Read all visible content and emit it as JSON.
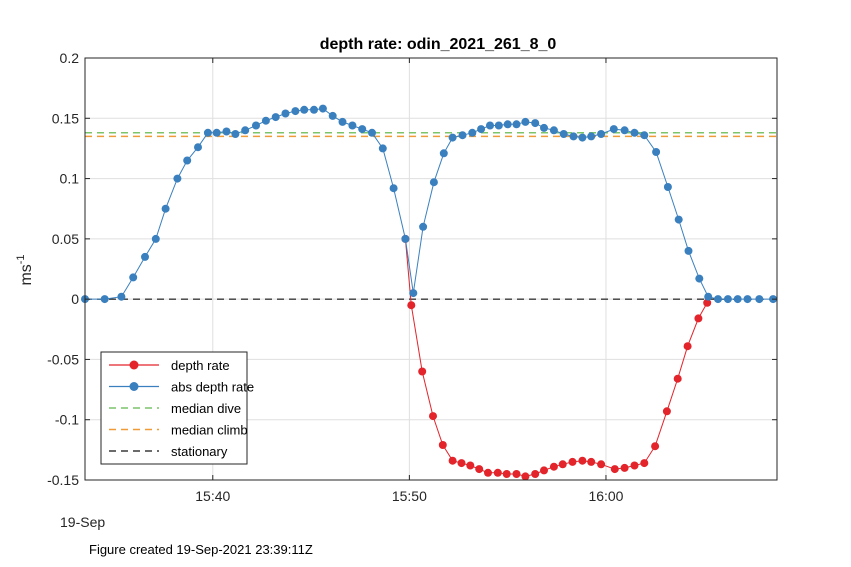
{
  "chart_data": {
    "type": "line",
    "title": "depth rate: odin_2021_261_8_0",
    "ylabel": "ms",
    "ylabel_sup": "-1",
    "date_label": "19-Sep",
    "footer": "Figure created 19-Sep-2021 23:39:11Z",
    "xlim": [
      33.5,
      68.7
    ],
    "ylim": [
      -0.15,
      0.2
    ],
    "x_ticks": [
      {
        "value": 40,
        "label": "15:40"
      },
      {
        "value": 50,
        "label": "15:50"
      },
      {
        "value": 60,
        "label": "16:00"
      }
    ],
    "y_ticks": [
      {
        "value": 0.2,
        "label": "0.2"
      },
      {
        "value": 0.15,
        "label": "0.15"
      },
      {
        "value": 0.1,
        "label": "0.1"
      },
      {
        "value": 0.05,
        "label": "0.05"
      },
      {
        "value": 0,
        "label": "0"
      },
      {
        "value": -0.05,
        "label": "-0.05"
      },
      {
        "value": -0.1,
        "label": "-0.1"
      },
      {
        "value": -0.15,
        "label": "-0.15"
      }
    ],
    "grid": true,
    "legend_position": "bottom-left",
    "series": [
      {
        "name": "depth rate",
        "color": "#e3242b",
        "marker": "circle",
        "points": [
          [
            49.8,
            0.05
          ],
          [
            50.1,
            -0.005
          ],
          [
            50.65,
            -0.06
          ],
          [
            51.2,
            -0.097
          ],
          [
            51.7,
            -0.121
          ],
          [
            52.2,
            -0.134
          ],
          [
            52.65,
            -0.136
          ],
          [
            53.1,
            -0.138
          ],
          [
            53.55,
            -0.141
          ],
          [
            54.0,
            -0.144
          ],
          [
            54.5,
            -0.144
          ],
          [
            54.95,
            -0.145
          ],
          [
            55.45,
            -0.145
          ],
          [
            55.9,
            -0.147
          ],
          [
            56.4,
            -0.145
          ],
          [
            56.85,
            -0.142
          ],
          [
            57.35,
            -0.139
          ],
          [
            57.8,
            -0.137
          ],
          [
            58.3,
            -0.135
          ],
          [
            58.8,
            -0.134
          ],
          [
            59.25,
            -0.135
          ],
          [
            59.75,
            -0.137
          ],
          [
            60.45,
            -0.141
          ],
          [
            60.95,
            -0.14
          ],
          [
            61.45,
            -0.138
          ],
          [
            61.95,
            -0.136
          ],
          [
            62.5,
            -0.122
          ],
          [
            63.1,
            -0.093
          ],
          [
            63.65,
            -0.066
          ],
          [
            64.15,
            -0.039
          ],
          [
            64.7,
            -0.016
          ],
          [
            65.15,
            -0.003
          ]
        ]
      },
      {
        "name": "abs depth rate",
        "color": "#3a80bf",
        "marker": "circle",
        "points": [
          [
            33.5,
            0.0
          ],
          [
            34.5,
            0.0
          ],
          [
            35.35,
            0.002
          ],
          [
            35.95,
            0.018
          ],
          [
            36.55,
            0.035
          ],
          [
            37.1,
            0.05
          ],
          [
            37.6,
            0.075
          ],
          [
            38.2,
            0.1
          ],
          [
            38.7,
            0.115
          ],
          [
            39.25,
            0.126
          ],
          [
            39.75,
            0.138
          ],
          [
            40.2,
            0.138
          ],
          [
            40.7,
            0.139
          ],
          [
            41.15,
            0.137
          ],
          [
            41.65,
            0.14
          ],
          [
            42.2,
            0.144
          ],
          [
            42.7,
            0.148
          ],
          [
            43.2,
            0.151
          ],
          [
            43.7,
            0.154
          ],
          [
            44.2,
            0.156
          ],
          [
            44.65,
            0.157
          ],
          [
            45.15,
            0.157
          ],
          [
            45.6,
            0.158
          ],
          [
            46.1,
            0.152
          ],
          [
            46.6,
            0.147
          ],
          [
            47.1,
            0.144
          ],
          [
            47.6,
            0.141
          ],
          [
            48.1,
            0.138
          ],
          [
            48.65,
            0.125
          ],
          [
            49.2,
            0.092
          ],
          [
            49.8,
            0.05
          ],
          [
            50.2,
            0.005
          ],
          [
            50.7,
            0.06
          ],
          [
            51.25,
            0.097
          ],
          [
            51.75,
            0.121
          ],
          [
            52.2,
            0.134
          ],
          [
            52.7,
            0.136
          ],
          [
            53.2,
            0.138
          ],
          [
            53.65,
            0.141
          ],
          [
            54.1,
            0.144
          ],
          [
            54.55,
            0.144
          ],
          [
            55.0,
            0.145
          ],
          [
            55.45,
            0.145
          ],
          [
            55.9,
            0.147
          ],
          [
            56.4,
            0.146
          ],
          [
            56.85,
            0.142
          ],
          [
            57.35,
            0.14
          ],
          [
            57.85,
            0.137
          ],
          [
            58.35,
            0.135
          ],
          [
            58.8,
            0.134
          ],
          [
            59.25,
            0.135
          ],
          [
            59.75,
            0.137
          ],
          [
            60.4,
            0.141
          ],
          [
            60.95,
            0.14
          ],
          [
            61.45,
            0.138
          ],
          [
            61.95,
            0.136
          ],
          [
            62.55,
            0.122
          ],
          [
            63.15,
            0.093
          ],
          [
            63.7,
            0.066
          ],
          [
            64.2,
            0.04
          ],
          [
            64.75,
            0.017
          ],
          [
            65.2,
            0.002
          ],
          [
            65.7,
            0.0
          ],
          [
            66.2,
            0.0
          ],
          [
            66.7,
            0.0
          ],
          [
            67.2,
            0.0
          ],
          [
            67.8,
            0.0
          ],
          [
            68.5,
            0.0
          ]
        ]
      },
      {
        "name": "median dive",
        "color": "#7cc46a",
        "style": "dashed",
        "y": 0.138
      },
      {
        "name": "median climb",
        "color": "#ef9c38",
        "style": "dashed",
        "y": 0.135
      },
      {
        "name": "stationary",
        "color": "#3a3a3a",
        "style": "dashed",
        "y": 0
      }
    ]
  }
}
